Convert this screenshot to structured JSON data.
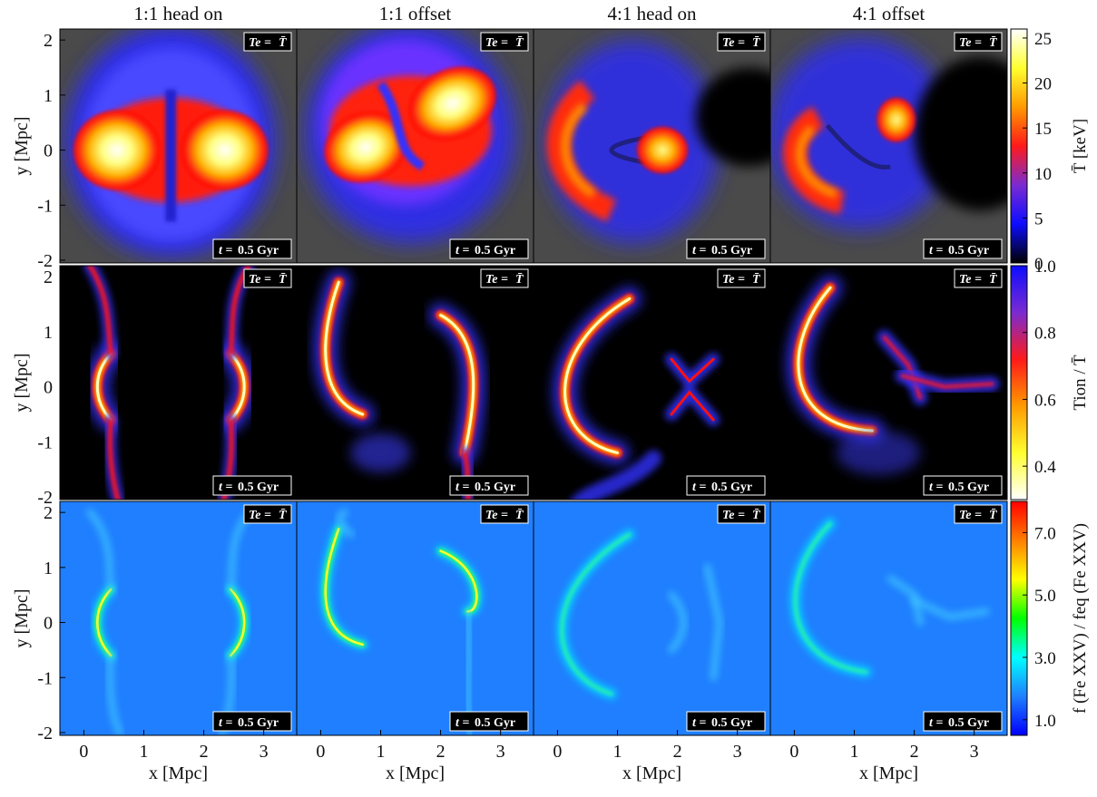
{
  "chart_data": {
    "type": "heatmap",
    "columns": [
      "1:1 head on",
      "1:1 offset",
      "4:1 head on",
      "4:1 offset"
    ],
    "time_label_prefix": "t = ",
    "time_label_value": "0.5 Gyr",
    "te_label_left": "Te = ",
    "te_label_right": "T̄",
    "x_axis": {
      "label": "x [Mpc]",
      "ticks": [
        "0",
        "1",
        "2",
        "3"
      ],
      "range": [
        -0.4,
        3.55
      ]
    },
    "y_axis": {
      "label": "y [Mpc]",
      "ticks": [
        "2",
        "1",
        "0",
        "-1",
        "-2"
      ],
      "range": [
        -2.05,
        2.2
      ]
    },
    "rows": [
      {
        "colorbar_label": "T̄ [keV]",
        "colorbar_ticks": [
          "25",
          "20",
          "15",
          "10",
          "5",
          "0"
        ],
        "colorbar_range": [
          0,
          26
        ],
        "colormap": "heat",
        "background": "#4a4a4a"
      },
      {
        "colorbar_label": "Tion / T̄",
        "colorbar_ticks": [
          "1.0",
          "0.8",
          "0.6",
          "0.4"
        ],
        "colorbar_range": [
          0.3,
          1.0
        ],
        "colormap": "heat-inverted",
        "background": "#000000"
      },
      {
        "colorbar_label": "f (Fe XXV) / feq (Fe XXV)",
        "colorbar_ticks": [
          "7.0",
          "5.0",
          "3.0",
          "1.0"
        ],
        "colorbar_range": [
          0.5,
          8.0
        ],
        "colormap": "jet",
        "background": "#1f7fff"
      }
    ],
    "colors": {
      "heat": [
        "#000000",
        "#0d0dff",
        "#7a2bd1",
        "#ff1a1a",
        "#ff9a00",
        "#ffff30",
        "#ffffff"
      ],
      "jet": [
        "#0000ff",
        "#1f7fff",
        "#00ffff",
        "#00ff00",
        "#ffff00",
        "#ff7f00",
        "#ff0000"
      ]
    }
  }
}
